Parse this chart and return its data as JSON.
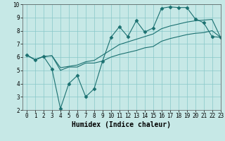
{
  "title": "",
  "xlabel": "Humidex (Indice chaleur)",
  "ylabel": "",
  "xlim": [
    -0.5,
    23
  ],
  "ylim": [
    2,
    10
  ],
  "xticks": [
    0,
    1,
    2,
    3,
    4,
    5,
    6,
    7,
    8,
    9,
    10,
    11,
    12,
    13,
    14,
    15,
    16,
    17,
    18,
    19,
    20,
    21,
    22,
    23
  ],
  "yticks": [
    2,
    3,
    4,
    5,
    6,
    7,
    8,
    9,
    10
  ],
  "bg_color": "#c6e8e6",
  "line_color": "#1a7070",
  "line1_x": [
    0,
    1,
    2,
    3,
    4,
    5,
    6,
    7,
    8,
    9,
    10,
    11,
    12,
    13,
    14,
    15,
    16,
    17,
    18,
    19,
    20,
    21,
    22,
    23
  ],
  "line1_y": [
    6.15,
    5.8,
    6.05,
    5.1,
    2.1,
    4.0,
    4.6,
    3.0,
    3.6,
    5.7,
    7.5,
    8.3,
    7.55,
    8.75,
    7.9,
    8.2,
    9.7,
    9.8,
    9.75,
    9.75,
    8.9,
    8.6,
    7.55,
    7.5
  ],
  "line2_x": [
    0,
    1,
    2,
    3,
    4,
    5,
    6,
    7,
    8,
    9,
    10,
    11,
    12,
    13,
    14,
    15,
    16,
    17,
    18,
    19,
    20,
    21,
    22,
    23
  ],
  "line2_y": [
    6.15,
    5.8,
    6.05,
    6.1,
    5.0,
    5.25,
    5.25,
    5.55,
    5.55,
    5.7,
    6.0,
    6.2,
    6.35,
    6.5,
    6.7,
    6.8,
    7.2,
    7.4,
    7.55,
    7.7,
    7.8,
    7.85,
    8.0,
    7.5
  ],
  "line3_x": [
    0,
    1,
    2,
    3,
    4,
    5,
    6,
    7,
    8,
    9,
    10,
    11,
    12,
    13,
    14,
    15,
    16,
    17,
    18,
    19,
    20,
    21,
    22,
    23
  ],
  "line3_y": [
    6.15,
    5.8,
    6.05,
    6.1,
    5.2,
    5.3,
    5.4,
    5.65,
    5.75,
    6.15,
    6.55,
    6.95,
    7.15,
    7.35,
    7.55,
    7.75,
    8.15,
    8.35,
    8.5,
    8.65,
    8.75,
    8.8,
    8.85,
    7.5
  ],
  "marker": "D",
  "markersize": 2.5,
  "linewidth": 0.8,
  "grid_color": "#88c8c8",
  "xlabel_fontsize": 7,
  "tick_fontsize": 5.5
}
